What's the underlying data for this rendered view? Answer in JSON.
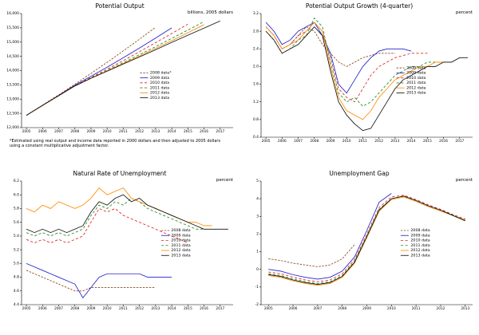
{
  "chart_data": [
    {
      "type": "line",
      "title": "Potential Output",
      "unit_label": "billions, 2005 dollars",
      "footnote": "*Estimated using real output and income data reported in 2000 dollars and then adjusted to 2005 dollars using a constant multiplicative adjustment factor.",
      "xlim": [
        2004.7,
        2017.8
      ],
      "ylim": [
        12000,
        16000
      ],
      "ytick_step": 500,
      "ytick_decimals": 0,
      "y_format": "comma",
      "xticks": [
        2005,
        2006,
        2007,
        2008,
        2009,
        2010,
        2011,
        2012,
        2013,
        2014,
        2015,
        2016,
        2017
      ],
      "legend_pos": {
        "x": 0.56,
        "y": 0.52
      },
      "series": [
        {
          "name": "2008 data*",
          "color": "#8B4513",
          "dash": [
            3,
            2
          ],
          "x0": 2005,
          "dx": 1,
          "values": [
            12430,
            12790,
            13150,
            13520,
            13900,
            14290,
            14690,
            15100,
            15520
          ]
        },
        {
          "name": "2009 data",
          "color": "#2222cc",
          "dash": [],
          "x0": 2005,
          "dx": 1,
          "values": [
            12430,
            12780,
            13130,
            13490,
            13800,
            14120,
            14450,
            14790,
            15140,
            15500
          ]
        },
        {
          "name": "2010 data",
          "color": "#dd2222",
          "dash": [
            4,
            3
          ],
          "x0": 2005,
          "dx": 1,
          "values": [
            12430,
            12780,
            13120,
            13470,
            13760,
            14050,
            14350,
            14660,
            14980,
            15300,
            15630
          ]
        },
        {
          "name": "2011 data",
          "color": "#228b22",
          "dash": [
            4,
            3
          ],
          "x0": 2005,
          "dx": 1,
          "values": [
            12430,
            12780,
            13120,
            13460,
            13740,
            14010,
            14280,
            14560,
            14840,
            15130,
            15420,
            15720
          ]
        },
        {
          "name": "2012 data",
          "color": "#ff8c00",
          "dash": [],
          "x0": 2005,
          "dx": 1,
          "values": [
            12430,
            12780,
            13120,
            13460,
            13730,
            13990,
            14250,
            14510,
            14780,
            15050,
            15330,
            15610
          ]
        },
        {
          "name": "2013 data",
          "color": "#111111",
          "dash": [],
          "x0": 2005,
          "dx": 1,
          "values": [
            12430,
            12780,
            13120,
            13460,
            13730,
            13980,
            14230,
            14480,
            14730,
            14990,
            15240,
            15490,
            15740
          ]
        }
      ]
    },
    {
      "type": "line",
      "title": "Potential Output Growth (4-quarter)",
      "unit_label": "percent",
      "xlim": [
        2004.7,
        2017.8
      ],
      "ylim": [
        0.4,
        3.2
      ],
      "ytick_step": 0.4,
      "ytick_decimals": 1,
      "y_format": "plain",
      "xticks": [
        2005,
        2006,
        2007,
        2008,
        2009,
        2010,
        2011,
        2012,
        2013,
        2014,
        2015,
        2016,
        2017
      ],
      "legend_pos": {
        "x": 0.64,
        "y": 0.44
      },
      "series": [
        {
          "name": "2008 data",
          "color": "#8B4513",
          "dash": [
            3,
            2
          ],
          "x0": 2005,
          "dx": 0.5,
          "values": [
            2.9,
            2.7,
            2.4,
            2.5,
            2.7,
            2.9,
            2.8,
            2.5,
            2.3,
            2.1,
            2.0,
            2.1,
            2.2,
            2.25,
            2.3,
            2.3,
            2.3
          ]
        },
        {
          "name": "2009 data",
          "color": "#2222cc",
          "dash": [],
          "x0": 2005,
          "dx": 0.5,
          "values": [
            3.0,
            2.8,
            2.5,
            2.6,
            2.8,
            2.9,
            3.0,
            2.7,
            2.3,
            1.6,
            1.4,
            1.7,
            2.0,
            2.2,
            2.35,
            2.4,
            2.4,
            2.4,
            2.35
          ]
        },
        {
          "name": "2010 data",
          "color": "#dd2222",
          "dash": [
            4,
            3
          ],
          "x0": 2005,
          "dx": 0.5,
          "values": [
            2.9,
            2.7,
            2.4,
            2.5,
            2.7,
            2.8,
            3.0,
            2.8,
            2.2,
            1.5,
            1.3,
            1.2,
            1.5,
            1.8,
            2.0,
            2.1,
            2.2,
            2.25,
            2.3,
            2.3,
            2.3
          ]
        },
        {
          "name": "2011 data",
          "color": "#228b22",
          "dash": [
            4,
            3
          ],
          "x0": 2005,
          "dx": 0.5,
          "values": [
            2.8,
            2.6,
            2.3,
            2.4,
            2.6,
            2.7,
            3.1,
            2.9,
            2.1,
            1.4,
            1.2,
            1.3,
            1.1,
            1.2,
            1.4,
            1.6,
            1.8,
            1.9,
            2.0,
            2.0,
            2.1,
            2.1,
            2.1
          ]
        },
        {
          "name": "2012 data",
          "color": "#ff8c00",
          "dash": [],
          "x0": 2005,
          "dx": 0.5,
          "values": [
            2.9,
            2.7,
            2.4,
            2.5,
            2.6,
            2.8,
            3.0,
            2.8,
            2.0,
            1.3,
            1.0,
            0.9,
            0.8,
            1.0,
            1.3,
            1.5,
            1.7,
            1.8,
            1.9,
            2.0,
            2.0,
            2.1,
            2.1,
            2.1
          ]
        },
        {
          "name": "2013 data",
          "color": "#111111",
          "dash": [],
          "x0": 2005,
          "dx": 0.5,
          "values": [
            2.8,
            2.6,
            2.3,
            2.4,
            2.5,
            2.7,
            2.9,
            2.7,
            1.9,
            1.2,
            0.9,
            0.7,
            0.55,
            0.6,
            0.9,
            1.2,
            1.5,
            1.7,
            1.8,
            1.9,
            2.0,
            2.0,
            2.1,
            2.1,
            2.2,
            2.2
          ]
        }
      ]
    },
    {
      "type": "line",
      "title": "Natural Rate of Unemployment",
      "unit_label": "percent",
      "xlim": [
        2004.7,
        2017.8
      ],
      "ylim": [
        4.4,
        6.2
      ],
      "ytick_step": 0.2,
      "ytick_decimals": 1,
      "y_format": "plain",
      "xticks": [
        2005,
        2006,
        2007,
        2008,
        2009,
        2010,
        2011,
        2012,
        2013,
        2014,
        2015,
        2016,
        2017
      ],
      "legend_pos": {
        "x": 0.66,
        "y": 0.4
      },
      "series": [
        {
          "name": "2008 data",
          "color": "#8B4513",
          "dash": [
            3,
            2
          ],
          "x0": 2005,
          "dx": 0.5,
          "values": [
            4.9,
            4.85,
            4.8,
            4.75,
            4.7,
            4.65,
            4.6,
            4.6,
            4.65,
            4.65,
            4.65,
            4.65,
            4.65,
            4.65,
            4.65,
            4.65,
            4.65
          ]
        },
        {
          "name": "2009 data",
          "color": "#2222cc",
          "dash": [],
          "x0": 2005,
          "dx": 0.5,
          "values": [
            5.0,
            4.95,
            4.9,
            4.85,
            4.8,
            4.75,
            4.7,
            4.5,
            4.65,
            4.8,
            4.85,
            4.85,
            4.85,
            4.85,
            4.85,
            4.8,
            4.8,
            4.8,
            4.8
          ]
        },
        {
          "name": "2010 data",
          "color": "#dd2222",
          "dash": [
            4,
            3
          ],
          "x0": 2005,
          "dx": 0.5,
          "values": [
            5.35,
            5.3,
            5.35,
            5.3,
            5.35,
            5.3,
            5.35,
            5.4,
            5.6,
            5.8,
            5.75,
            5.8,
            5.7,
            5.65,
            5.6,
            5.55,
            5.5,
            5.45,
            5.4,
            5.35,
            5.3
          ]
        },
        {
          "name": "2011 data",
          "color": "#228b22",
          "dash": [
            4,
            3
          ],
          "x0": 2005,
          "dx": 0.5,
          "values": [
            5.45,
            5.4,
            5.45,
            5.4,
            5.45,
            5.4,
            5.45,
            5.5,
            5.7,
            5.85,
            5.8,
            5.9,
            5.85,
            5.95,
            5.9,
            5.8,
            5.75,
            5.7,
            5.65,
            5.6,
            5.55,
            5.5,
            5.5
          ]
        },
        {
          "name": "2012 data",
          "color": "#ff8c00",
          "dash": [],
          "x0": 2005,
          "dx": 0.5,
          "values": [
            5.8,
            5.75,
            5.85,
            5.8,
            5.9,
            5.85,
            5.8,
            5.85,
            5.95,
            6.1,
            6.0,
            6.05,
            6.1,
            5.95,
            5.9,
            5.85,
            5.8,
            5.75,
            5.7,
            5.65,
            5.6,
            5.6,
            5.55,
            5.55
          ]
        },
        {
          "name": "2013 data",
          "color": "#111111",
          "dash": [],
          "x0": 2005,
          "dx": 0.5,
          "values": [
            5.5,
            5.45,
            5.5,
            5.45,
            5.5,
            5.45,
            5.5,
            5.55,
            5.75,
            5.9,
            5.85,
            5.95,
            6.0,
            5.9,
            5.95,
            5.85,
            5.8,
            5.75,
            5.7,
            5.65,
            5.6,
            5.55,
            5.5,
            5.5,
            5.5,
            5.5
          ]
        }
      ]
    },
    {
      "type": "line",
      "title": "Unemployment Gap",
      "unit_label": "percent",
      "xlim": [
        2004.7,
        2013.3
      ],
      "ylim": [
        -2,
        5
      ],
      "ytick_step": 1,
      "ytick_decimals": 0,
      "y_format": "plain",
      "xticks": [
        2005,
        2006,
        2007,
        2008,
        2009,
        2010,
        2011,
        2012,
        2013
      ],
      "legend_pos": {
        "x": 0.66,
        "y": 0.4
      },
      "series": [
        {
          "name": "2008 data",
          "color": "#8B4513",
          "dash": [
            3,
            2
          ],
          "x0": 2005,
          "dx": 0.5,
          "values": [
            0.6,
            0.5,
            0.35,
            0.25,
            0.15,
            0.25,
            0.6,
            1.4
          ]
        },
        {
          "name": "2009 data",
          "color": "#2222cc",
          "dash": [],
          "x0": 2005,
          "dx": 0.5,
          "values": [
            0.0,
            -0.1,
            -0.3,
            -0.45,
            -0.55,
            -0.45,
            -0.1,
            0.7,
            2.2,
            3.8,
            4.3
          ]
        },
        {
          "name": "2010 data",
          "color": "#dd2222",
          "dash": [
            4,
            3
          ],
          "x0": 2005,
          "dx": 0.5,
          "values": [
            -0.15,
            -0.25,
            -0.45,
            -0.6,
            -0.7,
            -0.6,
            -0.25,
            0.55,
            2.0,
            3.5,
            4.1,
            4.2,
            3.95,
            3.65,
            3.4,
            3.1,
            2.85
          ]
        },
        {
          "name": "2011 data",
          "color": "#228b22",
          "dash": [
            4,
            3
          ],
          "x0": 2005,
          "dx": 0.5,
          "values": [
            -0.25,
            -0.35,
            -0.55,
            -0.7,
            -0.8,
            -0.7,
            -0.35,
            0.45,
            1.9,
            3.4,
            4.0,
            4.15,
            3.9,
            3.6,
            3.35,
            3.08,
            2.8
          ]
        },
        {
          "name": "2012 data",
          "color": "#ff8c00",
          "dash": [],
          "x0": 2005,
          "dx": 0.5,
          "values": [
            -0.35,
            -0.45,
            -0.65,
            -0.8,
            -0.9,
            -0.8,
            -0.45,
            0.35,
            1.8,
            3.3,
            3.95,
            4.1,
            3.85,
            3.55,
            3.3,
            3.05,
            2.8
          ]
        },
        {
          "name": "2013 data",
          "color": "#111111",
          "dash": [],
          "x0": 2005,
          "dx": 0.5,
          "values": [
            -0.3,
            -0.4,
            -0.6,
            -0.75,
            -0.85,
            -0.75,
            -0.4,
            0.4,
            1.85,
            3.35,
            4.0,
            4.15,
            3.9,
            3.6,
            3.35,
            3.05,
            2.75
          ]
        }
      ]
    }
  ]
}
